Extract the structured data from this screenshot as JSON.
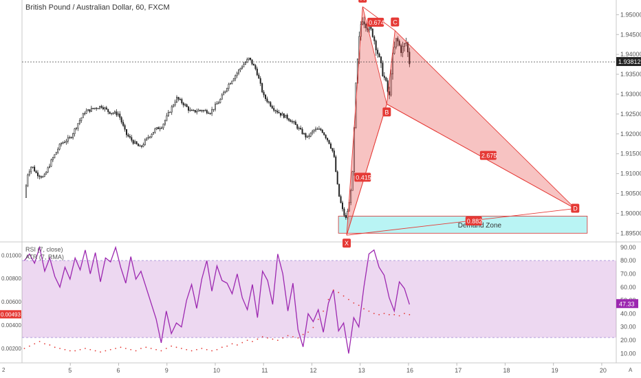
{
  "chart_data": [
    {
      "type": "candlestick",
      "title": "British Pound / Australian Dollar, 60, FXCM",
      "y_ticks": [
        "1.95000",
        "1.94500",
        "1.94000",
        "1.93500",
        "1.93000",
        "1.92500",
        "1.92000",
        "1.91500",
        "1.91000",
        "1.90500",
        "1.90000",
        "1.89500"
      ],
      "ylim": [
        1.8935,
        1.953
      ],
      "last_price": "1.93812",
      "last_price_value": 1.93812,
      "x_ticks": [
        "5",
        "6",
        "9",
        "10",
        "11",
        "12",
        "13",
        "16",
        "17",
        "18",
        "19",
        "20"
      ],
      "x_tick_index": [
        4.0,
        5.0,
        6.0,
        7.0,
        8.0,
        9.0,
        10.0,
        11.0,
        12.0,
        13.0,
        14.0,
        15.0
      ],
      "xlim": [
        3.0,
        15.3
      ],
      "close_path": [
        [
          3.05,
          1.904
        ],
        [
          3.12,
          1.91
        ],
        [
          3.2,
          1.912
        ],
        [
          3.3,
          1.91
        ],
        [
          3.45,
          1.909
        ],
        [
          3.6,
          1.913
        ],
        [
          3.8,
          1.9175
        ],
        [
          4.0,
          1.919
        ],
        [
          4.15,
          1.9225
        ],
        [
          4.3,
          1.9255
        ],
        [
          4.5,
          1.9265
        ],
        [
          4.65,
          1.927
        ],
        [
          4.8,
          1.9255
        ],
        [
          5.0,
          1.925
        ],
        [
          5.15,
          1.92
        ],
        [
          5.3,
          1.918
        ],
        [
          5.45,
          1.9165
        ],
        [
          5.6,
          1.919
        ],
        [
          5.75,
          1.921
        ],
        [
          5.9,
          1.922
        ],
        [
          6.05,
          1.9255
        ],
        [
          6.2,
          1.929
        ],
        [
          6.35,
          1.9275
        ],
        [
          6.5,
          1.9255
        ],
        [
          6.7,
          1.926
        ],
        [
          6.9,
          1.9255
        ],
        [
          7.1,
          1.9285
        ],
        [
          7.25,
          1.932
        ],
        [
          7.4,
          1.9345
        ],
        [
          7.55,
          1.937
        ],
        [
          7.7,
          1.939
        ],
        [
          7.85,
          1.936
        ],
        [
          8.0,
          1.9295
        ],
        [
          8.2,
          1.9265
        ],
        [
          8.35,
          1.925
        ],
        [
          8.5,
          1.924
        ],
        [
          8.6,
          1.923
        ],
        [
          8.75,
          1.921
        ],
        [
          8.9,
          1.919
        ],
        [
          9.05,
          1.921
        ],
        [
          9.2,
          1.921
        ],
        [
          9.35,
          1.918
        ],
        [
          9.45,
          1.915
        ],
        [
          9.55,
          1.905
        ],
        [
          9.63,
          1.901
        ],
        [
          9.7,
          1.8985
        ],
        [
          9.78,
          1.903
        ],
        [
          9.85,
          1.911
        ],
        [
          9.9,
          1.93
        ],
        [
          9.95,
          1.939
        ],
        [
          10.0,
          1.947
        ],
        [
          10.05,
          1.949
        ],
        [
          10.15,
          1.947
        ],
        [
          10.25,
          1.9455
        ],
        [
          10.35,
          1.941
        ],
        [
          10.45,
          1.936
        ],
        [
          10.55,
          1.932
        ],
        [
          10.6,
          1.9285
        ],
        [
          10.65,
          1.938
        ],
        [
          10.75,
          1.944
        ],
        [
          10.85,
          1.941
        ],
        [
          10.95,
          1.943
        ],
        [
          11.02,
          1.938
        ]
      ],
      "harmonic_pattern": {
        "points": [
          {
            "name": "X",
            "x": 9.72,
            "y": 1.8945
          },
          {
            "name": "A",
            "x": 10.05,
            "y": 1.952
          },
          {
            "name": "B",
            "x": 10.55,
            "y": 1.9275
          },
          {
            "name": "C",
            "x": 10.72,
            "y": 1.946
          },
          {
            "name": "D",
            "x": 14.45,
            "y": 1.9012
          }
        ],
        "ratios": [
          {
            "text": "0.415",
            "x": 10.05,
            "y": 1.909
          },
          {
            "text": "0.674",
            "x": 10.32,
            "y": 1.948
          },
          {
            "text": "2.675",
            "x": 12.65,
            "y": 1.9145
          },
          {
            "text": "0.882",
            "x": 12.35,
            "y": 1.898
          }
        ]
      },
      "demand_zone": {
        "label": "Demand Zone",
        "x_start": 9.55,
        "x_end": 14.7,
        "y_low": 1.895,
        "y_high": 1.8993
      }
    },
    {
      "type": "line",
      "series": [
        {
          "name": "RSI (7, close)",
          "color": "#9c27b0"
        },
        {
          "name": "ATR (7, RMA)",
          "color": "#e53935"
        }
      ],
      "rsi_right_ticks": [
        "90.00",
        "80.00",
        "70.00",
        "60.00",
        "50.00",
        "40.00",
        "30.00",
        "20.00",
        "10.00"
      ],
      "rsi_ylim": [
        5,
        92
      ],
      "rsi_band": [
        22,
        80
      ],
      "rsi_last": "47.33",
      "rsi_last_value": 47.33,
      "atr_left_ticks": [
        "0.01000",
        "0.00800",
        "0.00600",
        "0.00400",
        "0.00200"
      ],
      "atr_ylim": [
        0.001,
        0.0109
      ],
      "atr_last": "0.00493",
      "atr_last_value": 0.00493,
      "rsi_values": [
        80,
        85,
        78,
        90,
        72,
        82,
        68,
        60,
        75,
        66,
        82,
        73,
        88,
        70,
        86,
        64,
        82,
        79,
        90,
        75,
        63,
        83,
        66,
        72,
        60,
        48,
        36,
        18,
        42,
        25,
        33,
        30,
        50,
        62,
        44,
        66,
        80,
        57,
        76,
        65,
        63,
        55,
        70,
        52,
        43,
        62,
        37,
        72,
        65,
        47,
        85,
        70,
        42,
        63,
        28,
        15,
        40,
        34,
        43,
        26,
        48,
        58,
        27,
        33,
        10,
        37,
        30,
        60,
        85,
        88,
        75,
        69,
        52,
        42,
        64,
        59,
        47
      ],
      "atr_values": [
        0.002,
        0.0022,
        0.0024,
        0.0026,
        0.0024,
        0.0023,
        0.0021,
        0.002,
        0.0019,
        0.0018,
        0.0018,
        0.0019,
        0.002,
        0.0019,
        0.0018,
        0.0017,
        0.0018,
        0.0019,
        0.002,
        0.0021,
        0.002,
        0.0019,
        0.0018,
        0.002,
        0.0021,
        0.002,
        0.0019,
        0.0018,
        0.002,
        0.0022,
        0.0021,
        0.002,
        0.0019,
        0.0018,
        0.0019,
        0.002,
        0.0019,
        0.0018,
        0.0019,
        0.0021,
        0.0022,
        0.0024,
        0.0023,
        0.0025,
        0.0027,
        0.0026,
        0.0028,
        0.003,
        0.0029,
        0.0028,
        0.0027,
        0.0029,
        0.0031,
        0.003,
        0.0029,
        0.0032,
        0.0034,
        0.0038,
        0.0045,
        0.0052,
        0.0062,
        0.007,
        0.0068,
        0.0065,
        0.0062,
        0.0059,
        0.0057,
        0.0054,
        0.0052,
        0.005,
        0.0049,
        0.005,
        0.0049,
        0.0049,
        0.0048,
        0.005,
        0.0049
      ],
      "x_ticks_left_label": "2",
      "x_ticks_right_label": "A"
    }
  ]
}
